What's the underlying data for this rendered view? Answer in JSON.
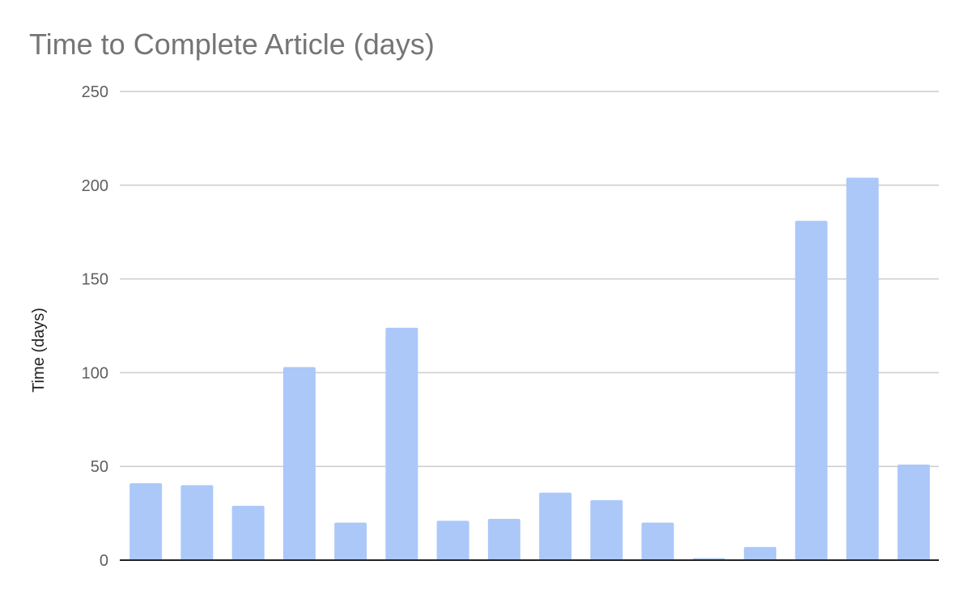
{
  "chart_data": {
    "type": "bar",
    "title": "Time to Complete Article (days)",
    "xlabel": "",
    "ylabel": "Time (days)",
    "ylim": [
      0,
      250
    ],
    "yticks": [
      0,
      50,
      100,
      150,
      200,
      250
    ],
    "grid": true,
    "legend": "none",
    "bar_color": "#abc8f9",
    "values": [
      41,
      40,
      29,
      103,
      20,
      124,
      21,
      22,
      36,
      32,
      20,
      1,
      7,
      181,
      204,
      51
    ]
  }
}
